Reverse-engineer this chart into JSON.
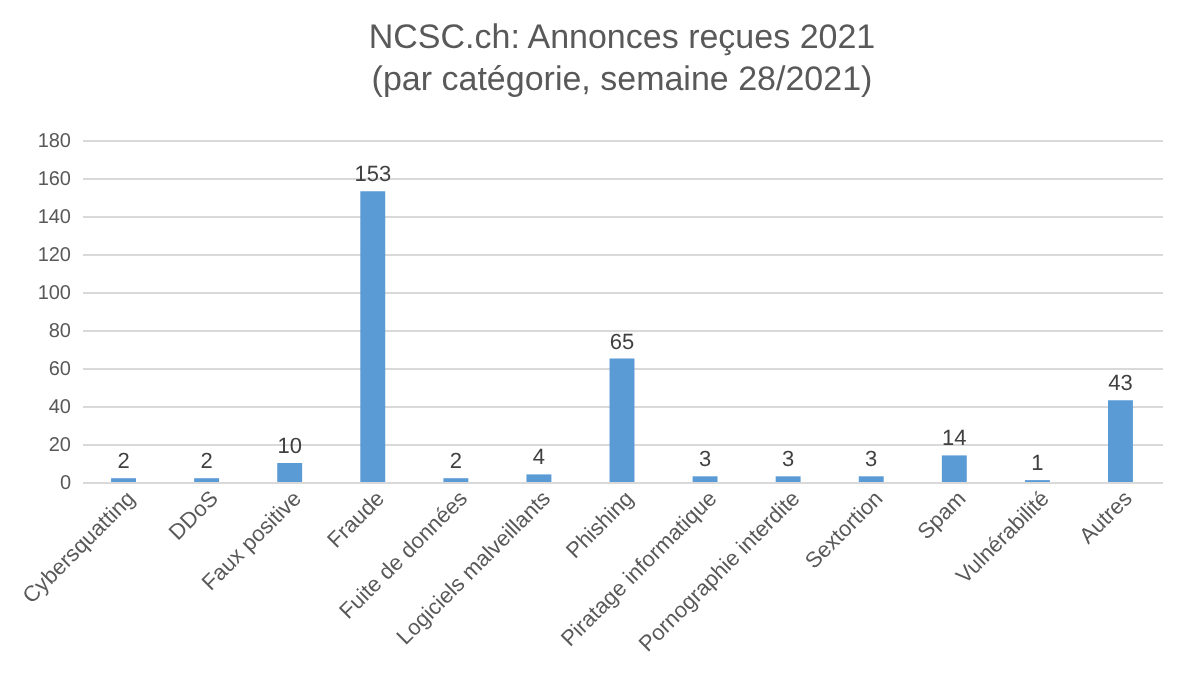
{
  "chart_data": {
    "type": "bar",
    "title": "NCSC.ch: Annonces reçues 2021",
    "subtitle": "(par catégorie, semaine 28/2021)",
    "categories": [
      "Cybersquatting",
      "DDoS",
      "Faux positive",
      "Fraude",
      "Fuite de données",
      "Logiciels malveillants",
      "Phishing",
      "Piratage informatique",
      "Pornographie interdite",
      "Sextortion",
      "Spam",
      "Vulnérabilité",
      "Autres"
    ],
    "values": [
      2,
      2,
      10,
      153,
      2,
      4,
      65,
      3,
      3,
      3,
      14,
      1,
      43
    ],
    "color": "#5b9bd5",
    "ylim": [
      0,
      180
    ],
    "yticks": [
      0,
      20,
      40,
      60,
      80,
      100,
      120,
      140,
      160,
      180
    ],
    "grid": "y",
    "data_labels": true
  }
}
